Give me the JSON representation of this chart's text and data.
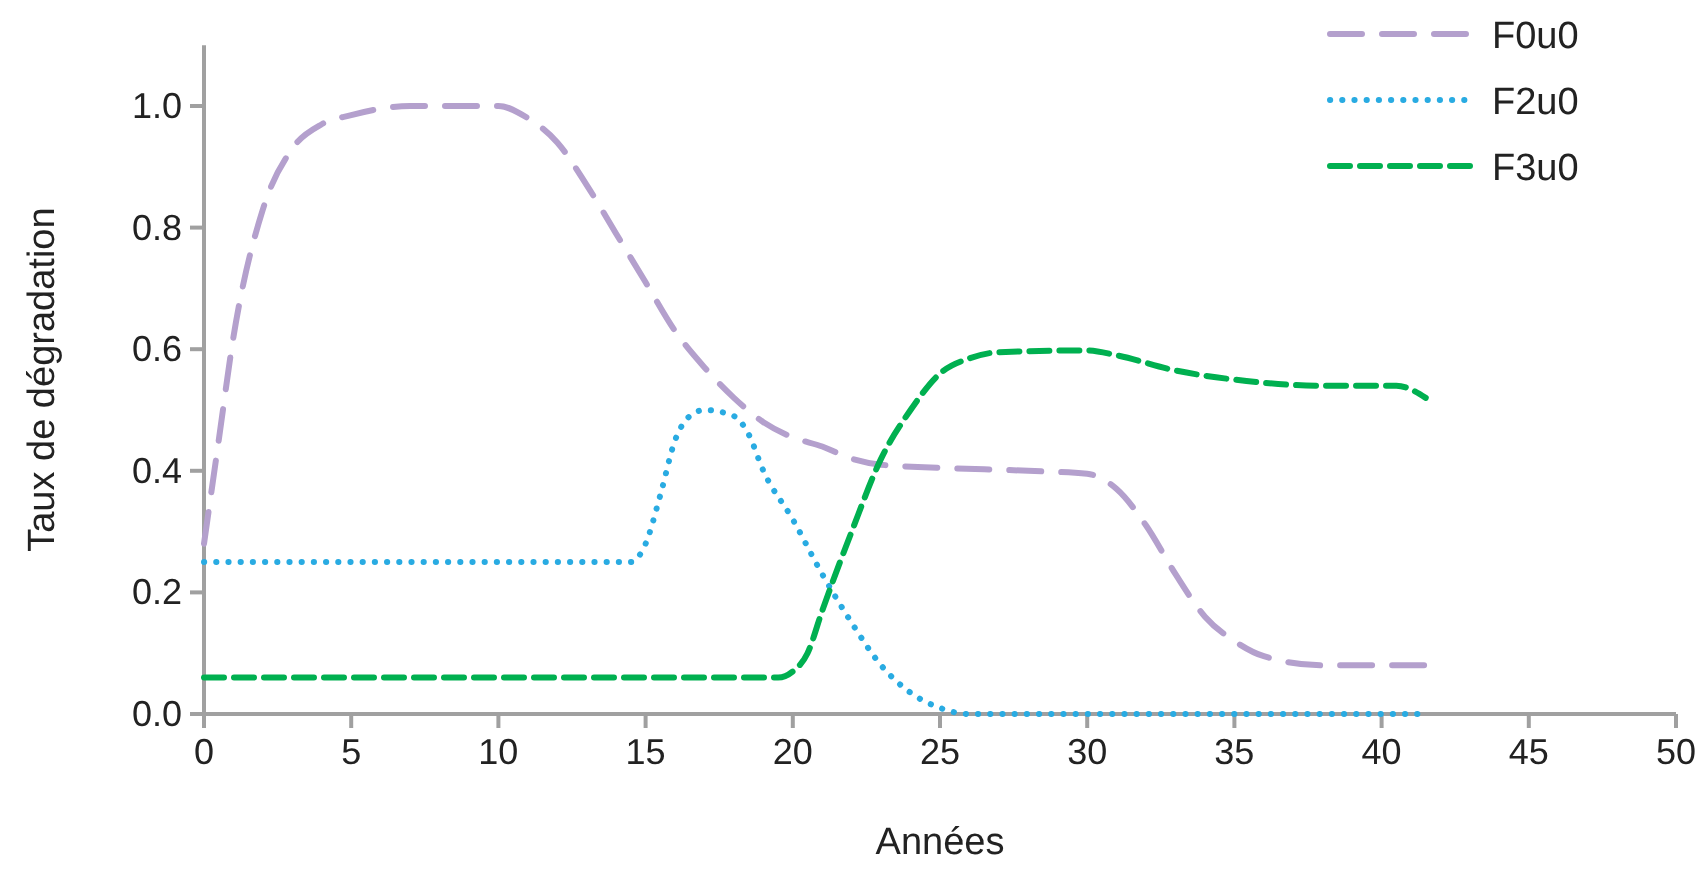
{
  "chart_data": {
    "type": "line",
    "xlabel": "Années",
    "ylabel": "Taux de dégradation",
    "xlim": [
      0,
      50
    ],
    "xticks": [
      0,
      5,
      10,
      15,
      20,
      25,
      30,
      35,
      40,
      45,
      50
    ],
    "ylim": [
      0,
      1.1
    ],
    "yticks": [
      {
        "value": 0,
        "label": "0.0"
      },
      {
        "value": 0.2,
        "label": "0.2"
      },
      {
        "value": 0.4,
        "label": "0.4"
      },
      {
        "value": 0.6,
        "label": "0.6"
      },
      {
        "value": 0.8,
        "label": "0.8"
      },
      {
        "value": 1,
        "label": "1.0"
      }
    ],
    "grid": false,
    "legend": "top right",
    "series": [
      {
        "name": "F0u0",
        "color": "#b4a0cd",
        "line_style": "dashed",
        "x": [
          0,
          0.5,
          1,
          2,
          3,
          4,
          5,
          7,
          10,
          11,
          12,
          13,
          14,
          15,
          16,
          17,
          18,
          19,
          20,
          21,
          22,
          23,
          25,
          28,
          30,
          31,
          32,
          33,
          34,
          35,
          36,
          38,
          41.5
        ],
        "values": [
          0.28,
          0.45,
          0.62,
          0.83,
          0.93,
          0.97,
          0.985,
          1.0,
          1.0,
          0.98,
          0.94,
          0.87,
          0.79,
          0.71,
          0.63,
          0.57,
          0.52,
          0.48,
          0.455,
          0.44,
          0.42,
          0.41,
          0.405,
          0.4,
          0.395,
          0.37,
          0.31,
          0.23,
          0.16,
          0.12,
          0.095,
          0.08,
          0.08
        ]
      },
      {
        "name": "F2u0",
        "color": "#29abe2",
        "line_style": "dotted",
        "x": [
          0,
          14.5,
          15,
          15.5,
          16,
          16.5,
          17,
          18,
          18.5,
          19,
          20,
          21,
          22,
          23,
          24,
          25,
          26,
          41.5
        ],
        "values": [
          0.25,
          0.25,
          0.28,
          0.36,
          0.45,
          0.49,
          0.5,
          0.49,
          0.46,
          0.4,
          0.32,
          0.23,
          0.15,
          0.08,
          0.035,
          0.01,
          0,
          0
        ]
      },
      {
        "name": "F3u0",
        "color": "#00b050",
        "line_style": "shortdash",
        "x": [
          0,
          19.5,
          20,
          20.5,
          21,
          22,
          23,
          24,
          25,
          26,
          27,
          30,
          31,
          33,
          35,
          38,
          40.5,
          41.5
        ],
        "values": [
          0.06,
          0.06,
          0.07,
          0.1,
          0.17,
          0.3,
          0.42,
          0.5,
          0.56,
          0.585,
          0.595,
          0.598,
          0.59,
          0.565,
          0.55,
          0.54,
          0.54,
          0.52
        ]
      }
    ]
  }
}
